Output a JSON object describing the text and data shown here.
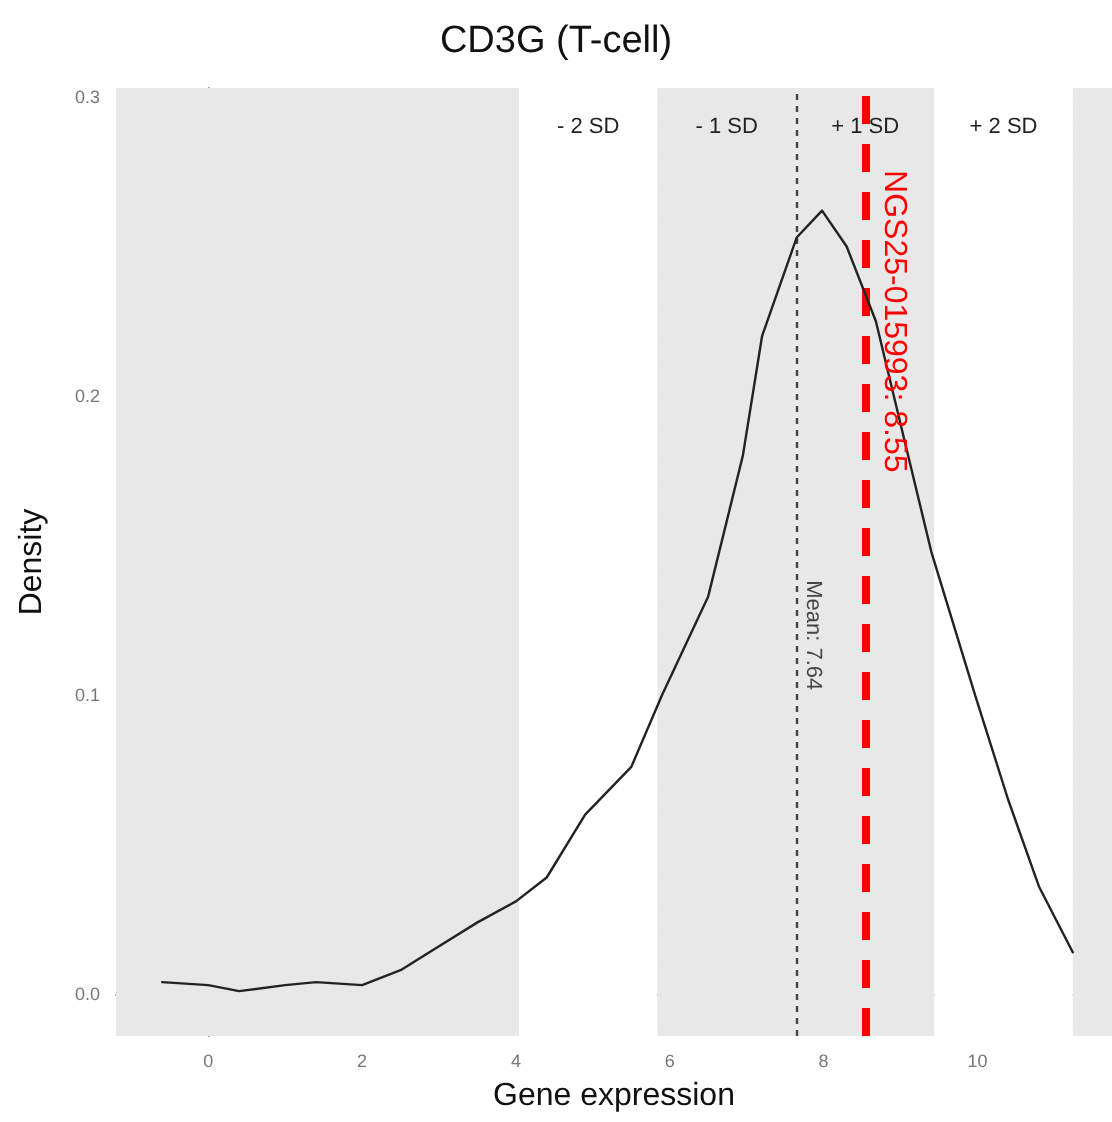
{
  "chart_data": {
    "type": "line",
    "title": "CD3G (T-cell)",
    "xlabel": "Gene expression",
    "ylabel": "Density",
    "x": [
      -0.6,
      0,
      0.4,
      1.0,
      1.4,
      2.0,
      2.5,
      3.0,
      3.5,
      4.0,
      4.4,
      4.9,
      5.5,
      5.9,
      6.5,
      6.95,
      7.2,
      7.65,
      7.98,
      8.3,
      8.68,
      9.1,
      9.4,
      9.97,
      10.4,
      10.8,
      11.24
    ],
    "series": [
      {
        "color": "#222222",
        "values": [
          0.004,
          0.003,
          0.001,
          0.003,
          0.004,
          0.003,
          0.008,
          0.016,
          0.024,
          0.031,
          0.039,
          0.06,
          0.076,
          0.1,
          0.133,
          0.18,
          0.22,
          0.253,
          0.262,
          0.25,
          0.225,
          0.18,
          0.148,
          0.1,
          0.065,
          0.036,
          0.014
        ]
      }
    ],
    "xlim": [
      -1.2,
      11.75
    ],
    "ylim": [
      -0.014,
      0.303
    ],
    "xticks": [
      0,
      2,
      4,
      6,
      8,
      10
    ],
    "yticks": [
      {
        "value": 0,
        "label": "0.0"
      },
      {
        "value": 0.1,
        "label": "0.1"
      },
      {
        "value": 0.2,
        "label": "0.2"
      },
      {
        "value": 0.3,
        "label": "0.3"
      }
    ],
    "grid": true,
    "marker": "none",
    "line_style": "solid",
    "bands": [
      {
        "axis": "x",
        "from": -1.2,
        "to": 4.04,
        "color": "#e8e8e8"
      },
      {
        "axis": "x",
        "from": 4.04,
        "to": 5.84,
        "label": "- 2 SD",
        "color": "#ffffff"
      },
      {
        "axis": "x",
        "from": 5.84,
        "to": 7.64,
        "label": "- 1 SD",
        "color": "#e8e8e8"
      },
      {
        "axis": "x",
        "from": 7.64,
        "to": 9.44,
        "label": "+ 1 SD",
        "color": "#e8e8e8"
      },
      {
        "axis": "x",
        "from": 9.44,
        "to": 11.24,
        "label": "+ 2 SD",
        "color": "#ffffff"
      },
      {
        "axis": "x",
        "from": 11.24,
        "to": 11.75,
        "color": "#e8e8e8"
      }
    ],
    "ref_lines": [
      {
        "axis": "x",
        "value": 7.64,
        "label": "Mean: 7.64",
        "color": "#444444",
        "line_style": "dotted"
      },
      {
        "axis": "x",
        "value": 8.55,
        "label": "NGS25-015993: 8.55",
        "color": "#ff0000",
        "line_style": "dashed"
      }
    ]
  }
}
